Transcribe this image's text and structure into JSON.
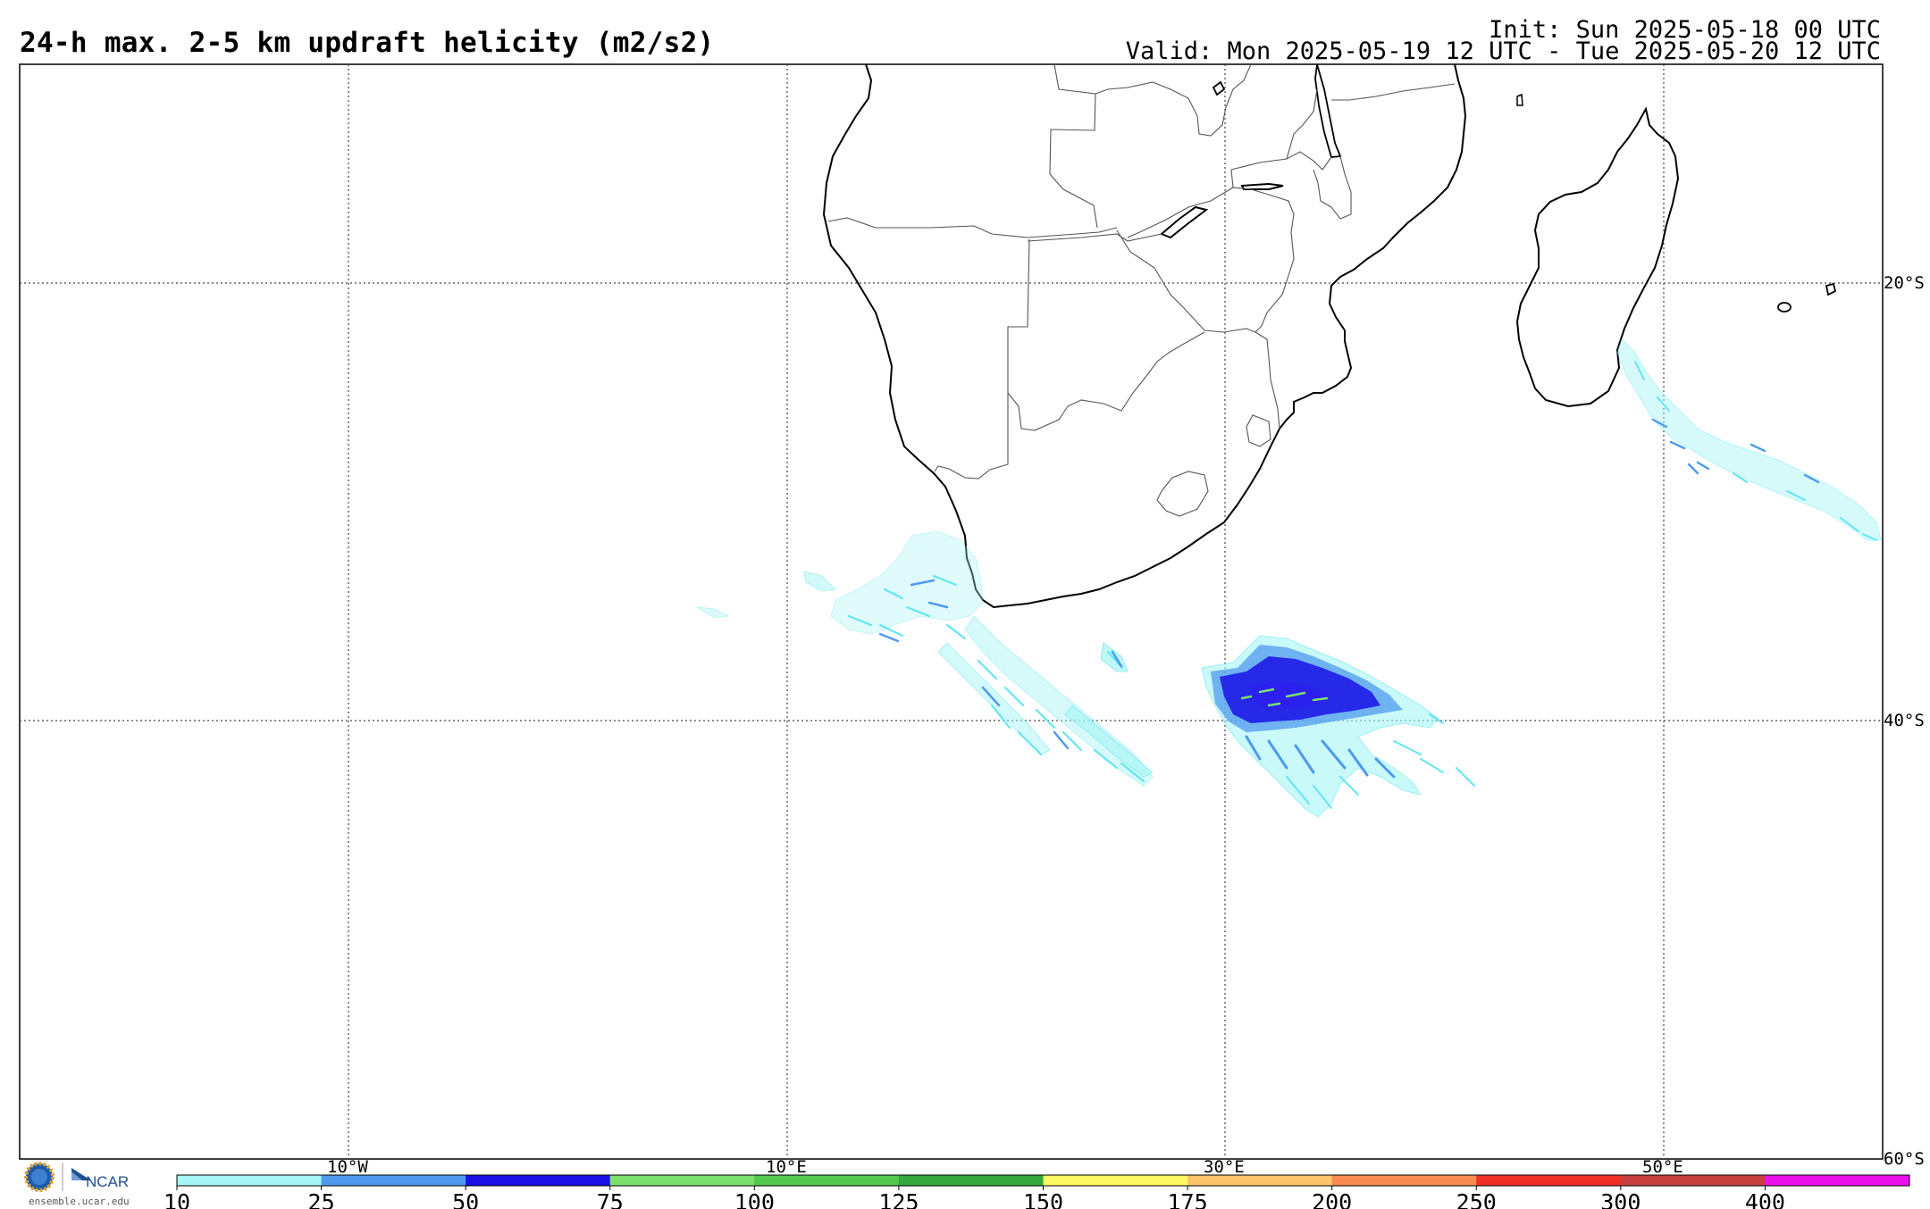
{
  "header": {
    "title": "24-h max. 2-5 km updraft helicity (m2/s2)",
    "init": "Init: Sun 2025-05-18 00 UTC",
    "valid": "Valid: Mon 2025-05-19 12 UTC - Tue 2025-05-20 12 UTC"
  },
  "map": {
    "lon_labels": [
      "10°W",
      "10°E",
      "30°E",
      "50°E"
    ],
    "lat_labels": [
      "20°S",
      "40°S",
      "60°S"
    ]
  },
  "colorbar": {
    "ticks": [
      "10",
      "25",
      "50",
      "75",
      "100",
      "125",
      "150",
      "175",
      "200",
      "250",
      "300",
      "400"
    ],
    "colors": [
      "#a6f6f6",
      "#4f9aee",
      "#1a10e6",
      "#7be06e",
      "#52c84e",
      "#33a83c",
      "#fdf962",
      "#fcc46a",
      "#f98a50",
      "#ef2f26",
      "#c83f40",
      "#ea10ea"
    ]
  },
  "footer": {
    "logo_text": "NCAR",
    "site": "ensemble.ucar.edu"
  }
}
